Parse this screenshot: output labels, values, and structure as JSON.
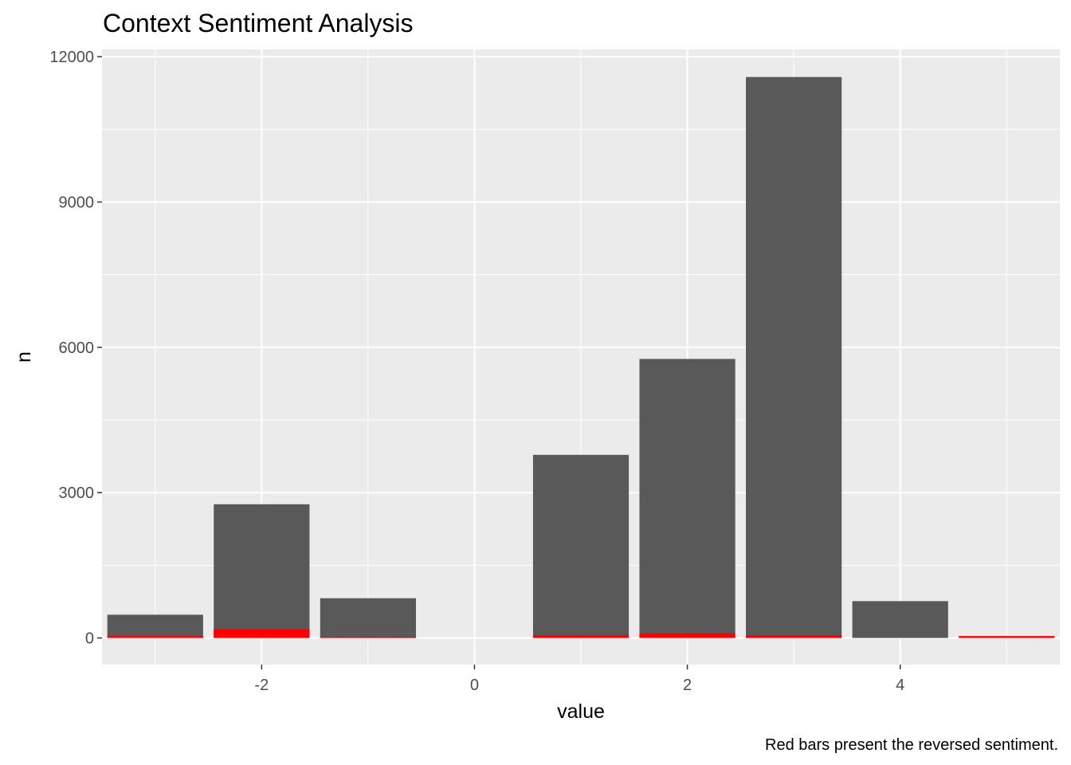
{
  "chart_data": {
    "type": "bar",
    "title": "Context Sentiment Analysis",
    "xlabel": "value",
    "ylabel": "n",
    "caption": "Red bars present the reversed sentiment.",
    "xlim": [
      -3.5,
      5.5
    ],
    "ylim": [
      -550,
      12150
    ],
    "x_ticks": [
      -2,
      0,
      2,
      4
    ],
    "x_tick_labels": [
      "-2",
      "0",
      "2",
      "4"
    ],
    "y_ticks": [
      0,
      3000,
      6000,
      9000,
      12000
    ],
    "y_tick_labels": [
      "0",
      "3000",
      "6000",
      "9000",
      "12000"
    ],
    "grid": true,
    "legend": "none",
    "bar_width": 0.9,
    "x": [
      -3,
      -2,
      -1,
      1,
      2,
      3,
      4,
      5
    ],
    "series": [
      {
        "values": [
          480,
          2760,
          820,
          3780,
          5760,
          11580,
          760,
          0
        ],
        "color": "#595959"
      },
      {
        "values": [
          40,
          180,
          25,
          60,
          95,
          55,
          0,
          40
        ],
        "color": "#ff0000"
      }
    ],
    "panel_background": "#ebebeb",
    "grid_color": "#ffffff"
  }
}
